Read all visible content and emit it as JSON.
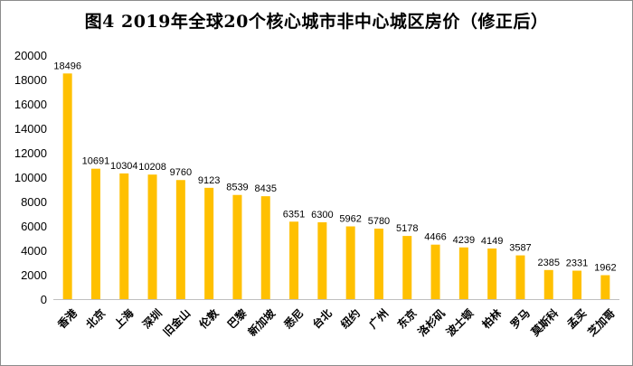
{
  "chart_data": {
    "type": "bar",
    "title": "图4   2019年全球20个核心城市非中心城区房价（修正后）",
    "xlabel": "",
    "ylabel": "",
    "ylim": [
      0,
      20000
    ],
    "yticks": [
      0,
      2000,
      4000,
      6000,
      8000,
      10000,
      12000,
      14000,
      16000,
      18000,
      20000
    ],
    "grid": false,
    "legend": "none",
    "bar_color": "#FFC000",
    "categories": [
      "香港",
      "北京",
      "上海",
      "深圳",
      "旧金山",
      "伦敦",
      "巴黎",
      "新加坡",
      "悉尼",
      "台北",
      "纽约",
      "广州",
      "东京",
      "洛杉矶",
      "波士顿",
      "柏林",
      "罗马",
      "莫斯科",
      "孟买",
      "芝加哥"
    ],
    "values": [
      18496,
      10691,
      10304,
      10208,
      9760,
      9123,
      8539,
      8435,
      6351,
      6300,
      5962,
      5780,
      5178,
      4466,
      4239,
      4149,
      3587,
      2385,
      2331,
      1962
    ]
  }
}
